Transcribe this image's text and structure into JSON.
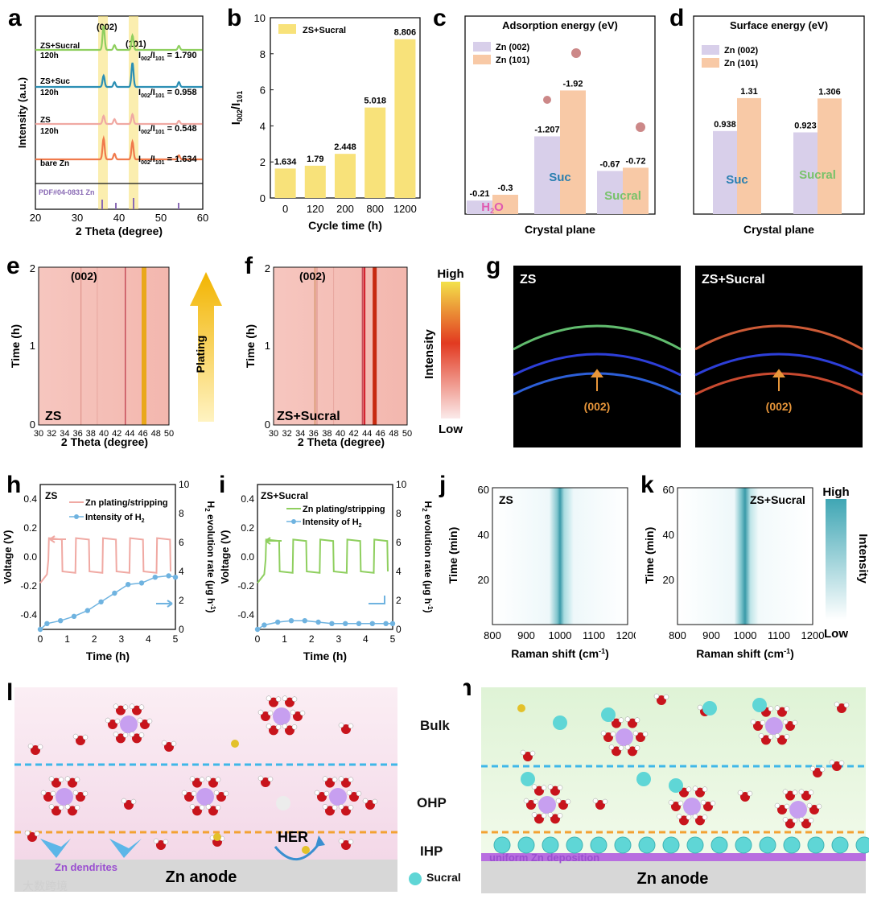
{
  "panels": {
    "a": "a",
    "b": "b",
    "c": "c",
    "d": "d",
    "e": "e",
    "f": "f",
    "g": "g",
    "h": "h",
    "i": "i",
    "j": "j",
    "k": "k",
    "l": "l",
    "m": "m"
  },
  "colors": {
    "highlight": "#f8e27a",
    "pink_curve": "#f0a9a3",
    "green_curve": "#8fcf5f",
    "teal_curve": "#2b8fb4",
    "orange_curve": "#f07a4c",
    "blue_dot": "#6fb3e0",
    "purple_bar": "#d8cfea",
    "peach_bar": "#f8c9a6",
    "dashed_blue": "#3fb7e8",
    "dashed_orange": "#f3a233",
    "sucral": "#5fd6d6"
  },
  "chart_data": [
    {
      "id": "a",
      "type": "line",
      "xlabel": "2 Theta (degree)",
      "ylabel": "Intensity (a.u.)",
      "xlim": [
        20,
        60
      ],
      "xticks": [
        "20",
        "30",
        "40",
        "50",
        "60"
      ],
      "peak_labels": [
        "(002)",
        "(101)"
      ],
      "series": [
        {
          "name": "ZS+Sucral 120h",
          "ratio": "I002/I101 = 1.790",
          "color": "#8fcf5f"
        },
        {
          "name": "ZS+Suc 120h",
          "ratio": "I002/I101 = 0.958",
          "color": "#2b8fb4"
        },
        {
          "name": "ZS 120h",
          "ratio": "I002/I101 = 0.548",
          "color": "#f0a9a3"
        },
        {
          "name": "bare Zn",
          "ratio": "I002/I101 = 1.634",
          "color": "#f07a4c"
        }
      ],
      "reference": "PDF#04-0831 Zn",
      "series_labels": [
        [
          "ZS+Sucral",
          "120h"
        ],
        [
          "ZS+Suc",
          "120h"
        ],
        [
          "ZS",
          "120h"
        ],
        [
          "bare Zn"
        ]
      ],
      "ratio_values": [
        "1.790",
        "0.958",
        "0.548",
        "1.634"
      ]
    },
    {
      "id": "b",
      "type": "bar",
      "legend": "ZS+Sucral",
      "xlabel": "Cycle time (h)",
      "ylabel": "I002/I101",
      "categories": [
        "0",
        "120",
        "200",
        "800",
        "1200"
      ],
      "values": [
        1.634,
        1.79,
        2.448,
        5.018,
        8.806
      ],
      "value_labels": [
        "1.634",
        "1.79",
        "2.448",
        "5.018",
        "8.806"
      ],
      "ylim": [
        0,
        10
      ],
      "yticks": [
        "0",
        "2",
        "4",
        "6",
        "8",
        "10"
      ]
    },
    {
      "id": "c",
      "type": "bar",
      "title": "Adsorption energy (eV)",
      "xlabel": "Crystal plane",
      "legend": [
        "Zn (002)",
        "Zn (101)"
      ],
      "categories": [
        "H2O",
        "Suc",
        "Sucral"
      ],
      "series": [
        {
          "name": "Zn (002)",
          "values": [
            -0.21,
            -1.207,
            -0.67
          ]
        },
        {
          "name": "Zn (101)",
          "values": [
            -0.3,
            -1.92,
            -0.72
          ]
        }
      ],
      "value_labels": [
        [
          "-0.21",
          "-0.3"
        ],
        [
          "-1.207",
          "-1.92"
        ],
        [
          "-0.67",
          "-0.72"
        ]
      ],
      "category_labels": [
        "H2O",
        "Suc",
        "Sucral"
      ]
    },
    {
      "id": "d",
      "type": "bar",
      "title": "Surface energy (eV)",
      "xlabel": "Crystal plane",
      "legend": [
        "Zn (002)",
        "Zn (101)"
      ],
      "categories": [
        "Suc",
        "Sucral"
      ],
      "series": [
        {
          "name": "Zn (002)",
          "values": [
            0.938,
            0.923
          ]
        },
        {
          "name": "Zn (101)",
          "values": [
            1.31,
            1.306
          ]
        }
      ],
      "value_labels": [
        [
          "0.938",
          "1.31"
        ],
        [
          "0.923",
          "1.306"
        ]
      ]
    },
    {
      "id": "e",
      "type": "heatmap",
      "label": "ZS",
      "peak": "(002)",
      "xlabel": "2 Theta (degree)",
      "ylabel": "Time (h)",
      "xticks": [
        "30",
        "32",
        "34",
        "36",
        "38",
        "40",
        "42",
        "44",
        "46",
        "48",
        "50"
      ],
      "yticks": [
        "0",
        "1",
        "2"
      ],
      "arrow_label": "Plating"
    },
    {
      "id": "f",
      "type": "heatmap",
      "label": "ZS+Sucral",
      "peak": "(002)",
      "xlabel": "2 Theta (degree)",
      "ylabel": "Time (h)",
      "xticks": [
        "30",
        "32",
        "34",
        "36",
        "38",
        "40",
        "42",
        "44",
        "46",
        "48",
        "50"
      ],
      "yticks": [
        "0",
        "1",
        "2"
      ],
      "colorbar": {
        "high": "High",
        "low": "Low",
        "label": "Intensity"
      }
    },
    {
      "id": "g",
      "type": "heatmap",
      "images": [
        {
          "label": "ZS",
          "annotation": "(002)"
        },
        {
          "label": "ZS+Sucral",
          "annotation": "(002)"
        }
      ]
    },
    {
      "id": "h",
      "type": "line",
      "label": "ZS",
      "xlabel": "Time (h)",
      "ylabel": "Voltage (V)",
      "y2label": "H2 evolution rate (μg h-1)",
      "xlim": [
        0,
        5
      ],
      "ylim": [
        -0.5,
        0.5
      ],
      "y2lim": [
        0,
        10
      ],
      "xticks": [
        "0",
        "1",
        "2",
        "3",
        "4",
        "5"
      ],
      "yticks": [
        "-0.4",
        "-0.2",
        "0.0",
        "0.2",
        "0.4"
      ],
      "y2ticks": [
        "0",
        "2",
        "4",
        "6",
        "8",
        "10"
      ],
      "series": [
        {
          "name": "Zn plating/stripping"
        },
        {
          "name": "Intensity of H2",
          "x": [
            0,
            0.25,
            0.75,
            1.25,
            1.75,
            2.25,
            2.75,
            3.25,
            3.75,
            4.25,
            4.75,
            5.0
          ],
          "y": [
            0.0,
            0.4,
            0.6,
            0.9,
            1.3,
            1.9,
            2.5,
            3.1,
            3.2,
            3.6,
            3.7,
            3.6
          ]
        }
      ],
      "legend_labels": [
        "Zn plating/stripping",
        "Intensity of H2"
      ]
    },
    {
      "id": "i",
      "type": "line",
      "label": "ZS+Sucral",
      "xlabel": "Time (h)",
      "ylabel": "Voltage (V)",
      "y2label": "H2 evolution rate (μg h-1)",
      "xlim": [
        0,
        5
      ],
      "ylim": [
        -0.5,
        0.5
      ],
      "y2lim": [
        0,
        10
      ],
      "xticks": [
        "0",
        "1",
        "2",
        "3",
        "4",
        "5"
      ],
      "yticks": [
        "-0.4",
        "-0.2",
        "0.0",
        "0.2",
        "0.4"
      ],
      "y2ticks": [
        "0",
        "2",
        "4",
        "6",
        "8",
        "10"
      ],
      "series": [
        {
          "name": "Zn plating/stripping"
        },
        {
          "name": "Intensity of H2",
          "x": [
            0,
            0.25,
            0.75,
            1.25,
            1.75,
            2.25,
            2.75,
            3.25,
            3.75,
            4.25,
            4.75,
            5.0
          ],
          "y": [
            0.0,
            0.3,
            0.5,
            0.6,
            0.6,
            0.5,
            0.4,
            0.4,
            0.4,
            0.4,
            0.4,
            0.4
          ]
        }
      ],
      "legend_labels": [
        "Zn plating/stripping",
        "Intensity of H2"
      ]
    },
    {
      "id": "j",
      "type": "heatmap",
      "label": "ZS",
      "xlabel": "Raman shift (cm-1)",
      "ylabel": "Time (min)",
      "xticks": [
        "800",
        "900",
        "1000",
        "1100",
        "1200"
      ],
      "yticks": [
        "20",
        "40",
        "60"
      ]
    },
    {
      "id": "k",
      "type": "heatmap",
      "label": "ZS+Sucral",
      "xlabel": "Raman shift (cm-1)",
      "ylabel": "Time (min)",
      "xticks": [
        "800",
        "900",
        "1000",
        "1100",
        "1200"
      ],
      "yticks": [
        "20",
        "40",
        "60"
      ],
      "colorbar": {
        "high": "High",
        "low": "Low",
        "label": "Intensity"
      }
    }
  ],
  "schematic": {
    "l": {
      "anode": "Zn anode",
      "dendrites": "Zn dendrites",
      "her": "HER"
    },
    "m": {
      "anode": "Zn anode",
      "deposition": "uniform Zn deposition"
    },
    "layers": [
      "Bulk",
      "OHP",
      "IHP"
    ],
    "legend_sucral": "Sucral"
  },
  "watermark": "大数跨境"
}
